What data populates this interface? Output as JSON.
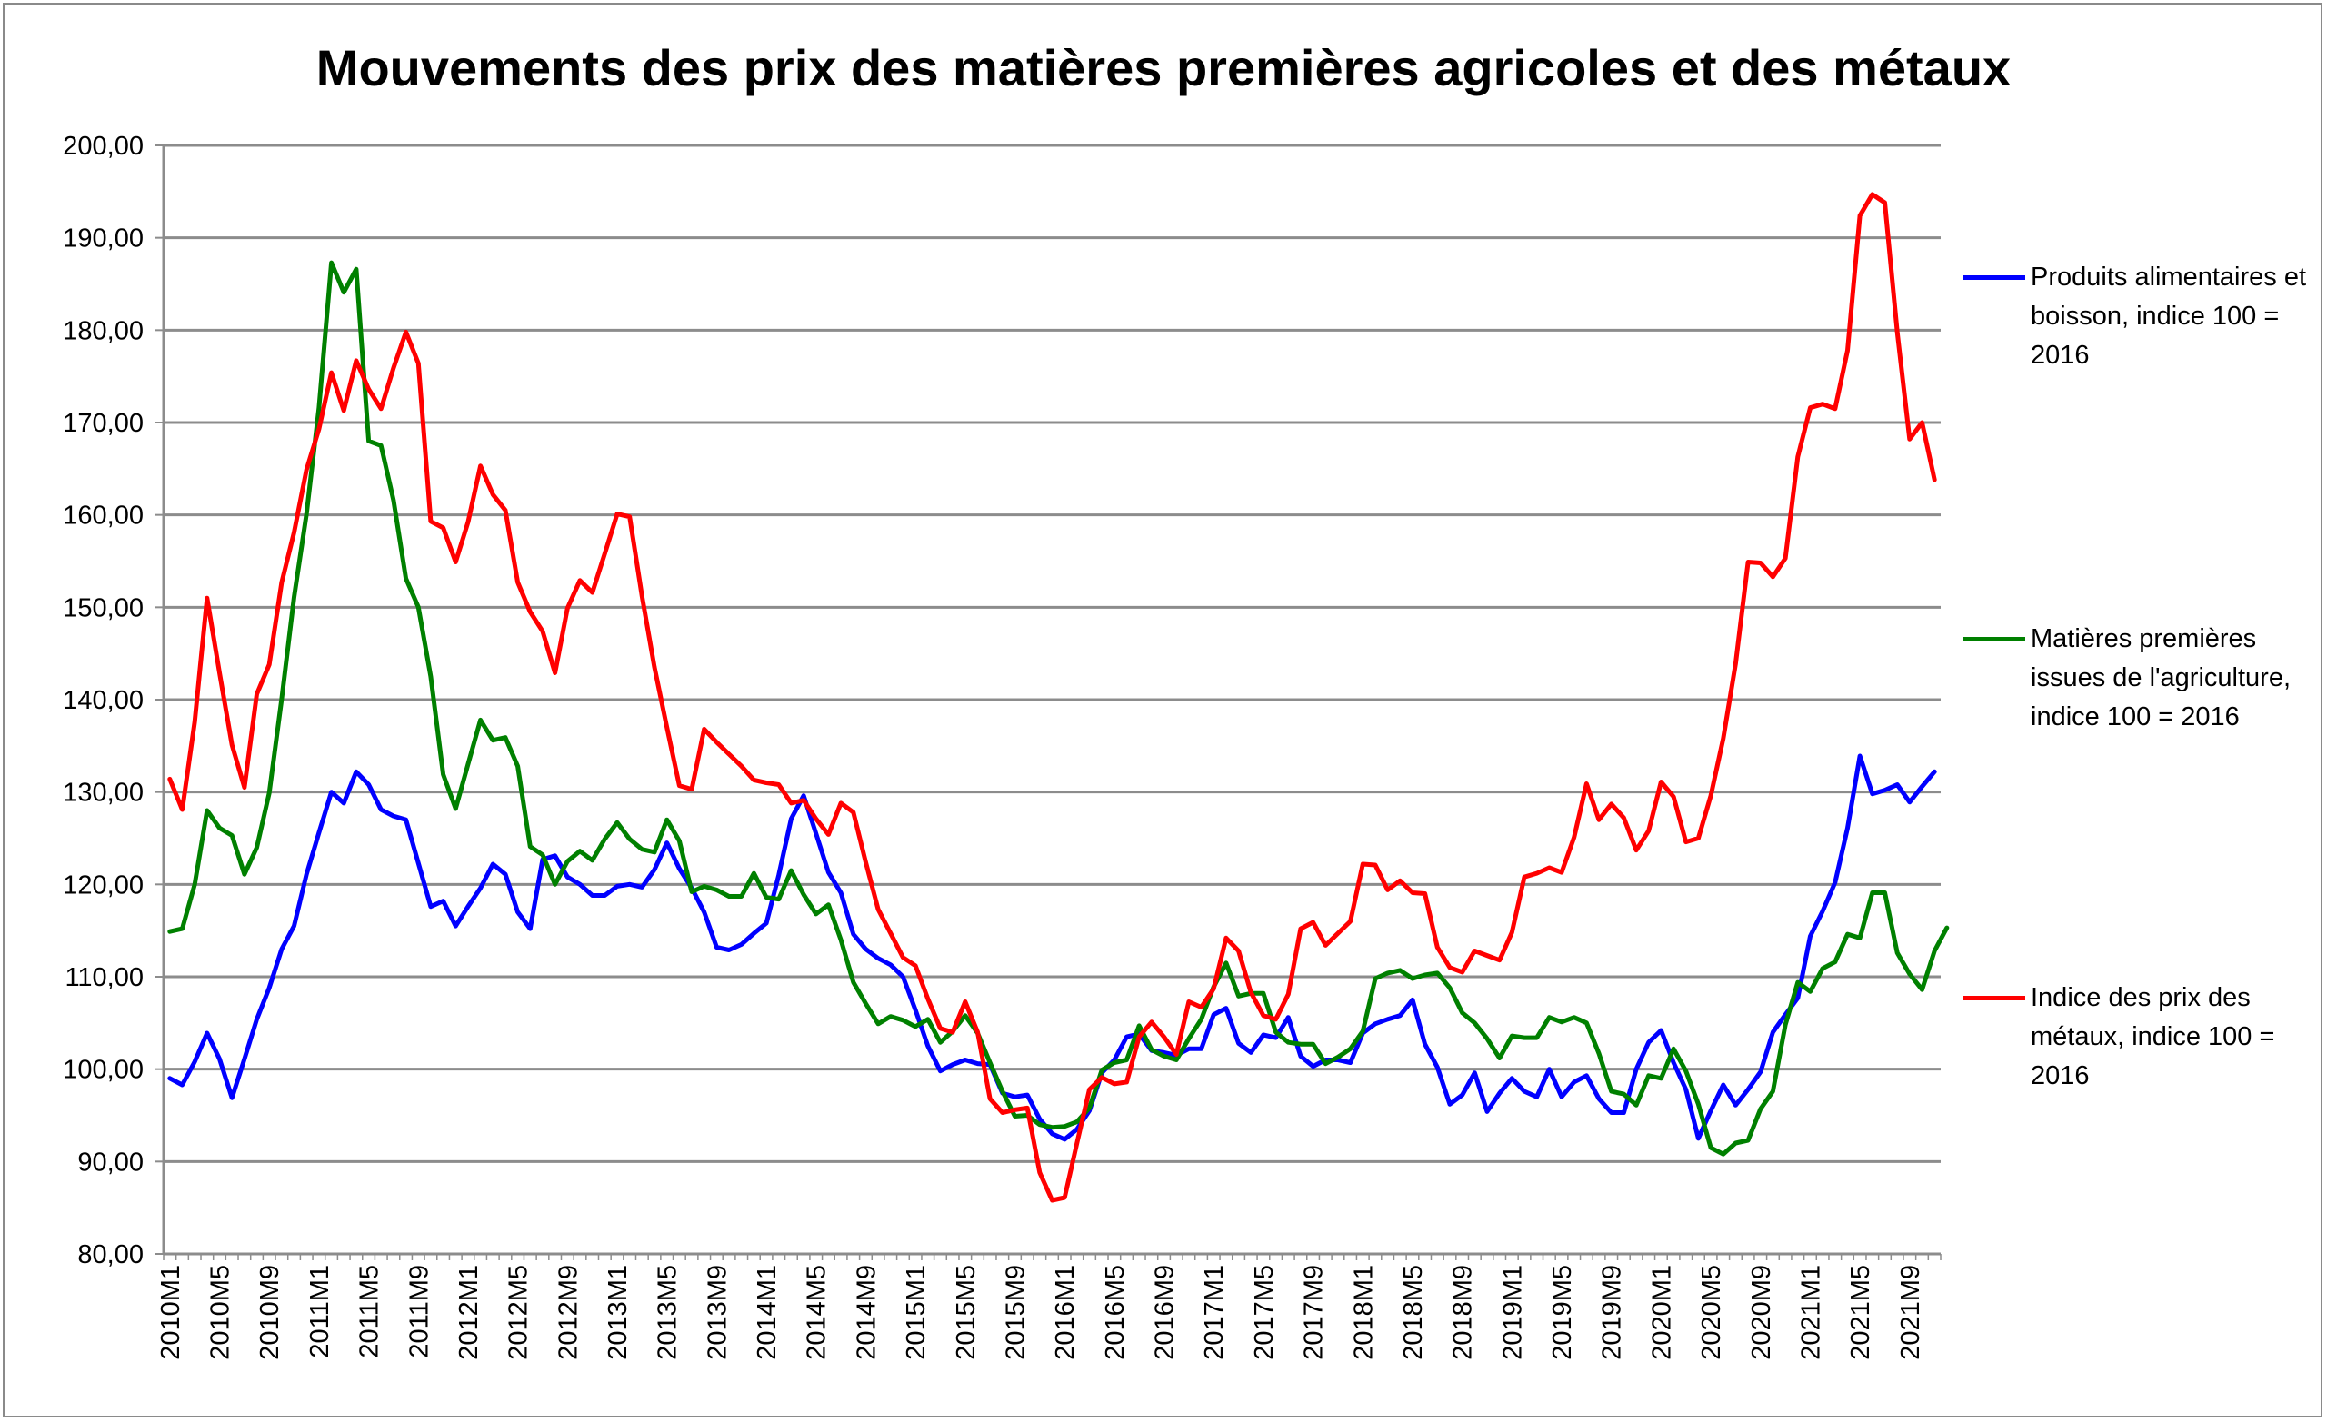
{
  "chart_data": {
    "type": "line",
    "title": "Mouvements des prix des matières premières agricoles et des métaux",
    "xlabel": "",
    "ylabel": "",
    "ylim": [
      80,
      200
    ],
    "yticks": [
      "80,00",
      "90,00",
      "100,00",
      "110,00",
      "120,00",
      "130,00",
      "140,00",
      "150,00",
      "160,00",
      "170,00",
      "180,00",
      "190,00",
      "200,00"
    ],
    "xtick_labels": [
      "2010M1",
      "2010M5",
      "2010M9",
      "2011M1",
      "2011M5",
      "2011M9",
      "2012M1",
      "2012M5",
      "2012M9",
      "2013M1",
      "2013M5",
      "2013M9",
      "2014M1",
      "2014M5",
      "2014M9",
      "2015M1",
      "2015M5",
      "2015M9",
      "2016M1",
      "2016M5",
      "2016M9",
      "2017M1",
      "2017M5",
      "2017M9",
      "2018M1",
      "2018M5",
      "2018M9",
      "2019M1",
      "2019M5",
      "2019M9",
      "2020M1",
      "2020M5",
      "2020M9",
      "2021M1",
      "2021M5",
      "2021M9"
    ],
    "grid": true,
    "legend_position": "right",
    "series": [
      {
        "name": "Produits alimentaires et boisson, indice 100 = 2016",
        "color": "#0000FF",
        "values": [
          99.0,
          98.3,
          100.8,
          103.9,
          101.1,
          96.9,
          101.1,
          105.4,
          108.8,
          113.0,
          115.5,
          121.1,
          125.6,
          130.0,
          128.8,
          132.2,
          130.8,
          128.1,
          127.4,
          127.0,
          122.3,
          117.6,
          118.2,
          115.5,
          117.6,
          119.6,
          122.2,
          121.1,
          117.0,
          115.2,
          122.7,
          123.1,
          120.8,
          120.0,
          118.8,
          118.8,
          119.8,
          120.0,
          119.7,
          121.6,
          124.5,
          121.7,
          119.6,
          117.0,
          113.2,
          112.9,
          113.5,
          114.7,
          115.8,
          121.0,
          127.1,
          129.6,
          125.5,
          121.3,
          119.1,
          114.6,
          113.0,
          112.0,
          111.3,
          110.0,
          106.4,
          102.5,
          99.8,
          100.5,
          101.0,
          100.6,
          100.5,
          97.4,
          97.0,
          97.2,
          94.6,
          93.0,
          92.4,
          93.5,
          95.5,
          99.6,
          101.0,
          103.5,
          103.8,
          102.0,
          101.8,
          101.5,
          102.2,
          102.2,
          105.9,
          106.6,
          102.8,
          101.8,
          103.7,
          103.4,
          105.6,
          101.4,
          100.3,
          101.0,
          101.0,
          100.7,
          103.9,
          104.9,
          105.4,
          105.8,
          107.5,
          102.7,
          100.2,
          96.2,
          97.2,
          99.6,
          95.4,
          97.4,
          99.0,
          97.6,
          97.0,
          100.0,
          97.0,
          98.6,
          99.3,
          96.8,
          95.3,
          95.3,
          100.0,
          102.9,
          104.2,
          100.7,
          97.8,
          92.5,
          95.5,
          98.3,
          96.1,
          97.8,
          99.7,
          104.0,
          105.9,
          107.7,
          114.4,
          117.1,
          120.2,
          126.1,
          133.9,
          129.8,
          130.2,
          130.8,
          128.9,
          130.6,
          132.2
        ]
      },
      {
        "name": "Matières premières issues de l'agriculture, indice 100 = 2016",
        "color": "#008000",
        "values": [
          114.9,
          115.2,
          120.0,
          128.0,
          126.1,
          125.3,
          121.1,
          124.0,
          129.9,
          140.1,
          151.1,
          160.1,
          171.6,
          187.3,
          184.1,
          186.6,
          168.0,
          167.5,
          161.6,
          153.1,
          150.0,
          142.5,
          131.9,
          128.2,
          133.0,
          137.8,
          135.6,
          135.9,
          132.8,
          124.1,
          123.2,
          120.0,
          122.5,
          123.6,
          122.6,
          124.9,
          126.7,
          124.9,
          123.8,
          123.5,
          127.0,
          124.7,
          119.2,
          119.8,
          119.4,
          118.7,
          118.7,
          121.2,
          118.6,
          118.4,
          121.5,
          118.9,
          116.8,
          117.8,
          114.0,
          109.4,
          107.1,
          104.9,
          105.7,
          105.3,
          104.6,
          105.4,
          102.9,
          104.1,
          105.8,
          103.9,
          100.7,
          97.6,
          94.9,
          95.0,
          94.0,
          93.7,
          93.8,
          94.3,
          95.8,
          99.9,
          100.7,
          101.0,
          104.7,
          102.1,
          101.4,
          101.0,
          103.3,
          105.4,
          108.9,
          111.5,
          107.9,
          108.2,
          108.2,
          104.0,
          102.9,
          102.7,
          102.7,
          100.6,
          101.3,
          102.2,
          104.1,
          109.8,
          110.4,
          110.7,
          109.8,
          110.2,
          110.4,
          108.8,
          106.1,
          105.0,
          103.3,
          101.2,
          103.6,
          103.4,
          103.4,
          105.6,
          105.1,
          105.6,
          105.0,
          101.7,
          97.6,
          97.3,
          96.1,
          99.3,
          99.0,
          102.2,
          99.8,
          96.2,
          91.5,
          90.8,
          92.0,
          92.3,
          95.7,
          97.6,
          104.8,
          109.4,
          108.4,
          110.9,
          111.6,
          114.6,
          114.2,
          119.1,
          119.1,
          112.6,
          110.3,
          108.6,
          112.8,
          115.3
        ]
      },
      {
        "name": "Indice des prix des métaux, indice 100 = 2016",
        "color": "#FF0000",
        "values": [
          131.4,
          128.1,
          137.6,
          151.0,
          142.9,
          135.1,
          130.5,
          140.6,
          143.8,
          152.7,
          158.1,
          164.9,
          169.3,
          175.4,
          171.3,
          176.7,
          173.6,
          171.5,
          175.9,
          179.8,
          176.4,
          159.3,
          158.6,
          154.9,
          159.2,
          165.3,
          162.2,
          160.5,
          152.7,
          149.5,
          147.4,
          142.9,
          149.9,
          152.9,
          151.6,
          155.8,
          160.1,
          159.8,
          151.2,
          143.5,
          137.0,
          130.7,
          130.3,
          136.8,
          135.4,
          134.1,
          132.8,
          131.3,
          131.0,
          130.8,
          128.8,
          129.1,
          127.1,
          125.4,
          128.8,
          127.8,
          122.4,
          117.3,
          114.7,
          112.1,
          111.2,
          107.6,
          104.4,
          104.0,
          107.3,
          104.0,
          96.8,
          95.3,
          95.6,
          95.8,
          88.8,
          85.8,
          86.1,
          92.0,
          97.8,
          99.1,
          98.4,
          98.6,
          103.5,
          105.1,
          103.5,
          101.6,
          107.3,
          106.7,
          108.7,
          114.2,
          112.8,
          108.3,
          105.8,
          105.4,
          108.1,
          115.2,
          115.9,
          113.4,
          114.7,
          116.0,
          122.2,
          122.1,
          119.4,
          120.4,
          119.1,
          119.0,
          113.2,
          111.0,
          110.5,
          112.8,
          112.3,
          111.8,
          114.8,
          120.8,
          121.2,
          121.8,
          121.3,
          125.1,
          130.9,
          127.0,
          128.7,
          127.2,
          123.7,
          125.8,
          131.1,
          129.5,
          124.6,
          125.0,
          129.6,
          135.8,
          143.9,
          154.9,
          154.8,
          153.3,
          155.3,
          166.3,
          171.6,
          172.0,
          171.5,
          177.8,
          192.4,
          194.7,
          193.8,
          179.8,
          168.2,
          170.0,
          163.8
        ]
      }
    ]
  }
}
